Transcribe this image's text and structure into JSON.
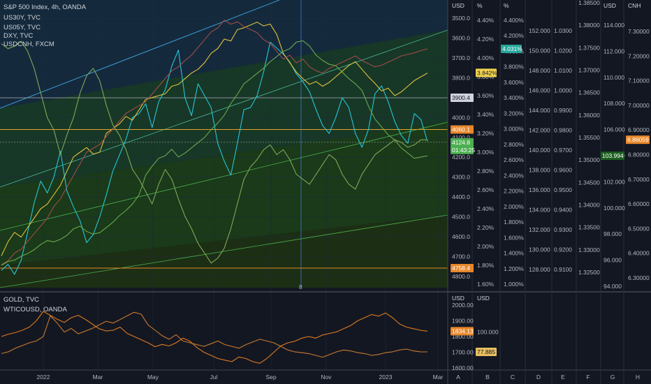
{
  "legend_main": [
    "S&P 500 Index, 4h, OANDA",
    "US30Y, TVC",
    "US05Y, TVC",
    "DXY, TVC",
    "USDCNH, FXCM"
  ],
  "legend_sub": [
    "GOLD, TVC",
    "WTICOUSD, OANDA"
  ],
  "axis_units": [
    "USD",
    "%",
    "%",
    "",
    "",
    "",
    "USD",
    "CNH"
  ],
  "sub_axis_units": [
    "USD",
    "USD"
  ],
  "axis_letters": [
    "A",
    "B",
    "C",
    "D",
    "E",
    "F",
    "G",
    "H"
  ],
  "colors": {
    "background": "#131722",
    "spx": "#26c6da",
    "us30y": "#e0c040",
    "us05y": "#a14a4a",
    "dxy": "#6aa84f",
    "usdcnh": "#7fa85a",
    "gold": "#e07a1f",
    "wti": "#c97a2e",
    "channel": "#3d9bd6"
  },
  "chart_data": {
    "type": "line",
    "x_ticks": [
      "2022",
      "Mar",
      "May",
      "Jul",
      "Sep",
      "Nov",
      "2023",
      "Mar"
    ],
    "time_marker_label": "8",
    "axes": [
      {
        "id": "A",
        "unit": "USD",
        "series": "S&P 500 Index",
        "ticks": [
          "4800.0",
          "4700.0",
          "4600.0",
          "4500.0",
          "4400.0",
          "4300.0",
          "4200.0",
          "4100.0",
          "4000.0",
          "3900.0",
          "3800.0",
          "3700.0",
          "3600.0",
          "3500.0"
        ]
      },
      {
        "id": "B",
        "unit": "%",
        "series": "US30Y",
        "ticks": [
          "4.40%",
          "4.20%",
          "4.00%",
          "3.80%",
          "3.60%",
          "3.40%",
          "3.20%",
          "3.00%",
          "2.80%",
          "2.60%",
          "2.40%",
          "2.20%",
          "2.00%",
          "1.80%",
          "1.60%"
        ]
      },
      {
        "id": "C",
        "unit": "%",
        "series": "US05Y",
        "ticks": [
          "4.400%",
          "4.200%",
          "4.000%",
          "3.800%",
          "3.600%",
          "3.400%",
          "3.200%",
          "3.000%",
          "2.800%",
          "2.600%",
          "2.400%",
          "2.200%",
          "2.000%",
          "1.800%",
          "1.600%",
          "1.400%",
          "1.200%",
          "1.000%"
        ]
      },
      {
        "id": "D",
        "unit": "",
        "series": "DXY",
        "ticks": [
          "152.000",
          "150.000",
          "148.000",
          "146.000",
          "144.000",
          "142.000",
          "140.000",
          "138.000",
          "136.000",
          "134.000",
          "132.000",
          "130.000",
          "128.000"
        ]
      },
      {
        "id": "E",
        "unit": "",
        "series": "",
        "ticks": [
          "1.0300",
          "1.0200",
          "1.0100",
          "1.0000",
          "0.9900",
          "0.9800",
          "0.9700",
          "0.9600",
          "0.9500",
          "0.9400",
          "0.9300",
          "0.9200",
          "0.9100"
        ]
      },
      {
        "id": "F",
        "unit": "",
        "series": "",
        "ticks": [
          "1.38500",
          "1.38000",
          "1.37500",
          "1.37000",
          "1.36500",
          "1.36000",
          "1.35500",
          "1.35000",
          "1.34500",
          "1.34000",
          "1.33500",
          "1.33000",
          "1.32500"
        ]
      },
      {
        "id": "G",
        "unit": "USD",
        "series": "",
        "ticks": [
          "114.000",
          "112.000",
          "110.000",
          "108.000",
          "106.000",
          "104.000",
          "102.000",
          "100.000",
          "98.000",
          "96.000",
          "94.000"
        ]
      },
      {
        "id": "H",
        "unit": "CNH",
        "series": "USDCNH",
        "ticks": [
          "7.30000",
          "7.20000",
          "7.10000",
          "7.00000",
          "6.90000",
          "6.80000",
          "6.70000",
          "6.60000",
          "6.50000",
          "6.40000",
          "6.30000"
        ]
      }
    ],
    "sub_axes": [
      {
        "unit": "USD",
        "series": "GOLD",
        "ticks": [
          "2000.00",
          "1900.00",
          "1800.00",
          "1700.00",
          "1600.00"
        ]
      },
      {
        "unit": "USD",
        "series": "WTICOUSD",
        "ticks": [
          "100.000",
          "77.885"
        ]
      }
    ],
    "price_tags": {
      "main": [
        {
          "text": "4758.4",
          "color": "#e8872a",
          "level": 4758.4
        },
        {
          "text": "4124.8",
          "color": "#4caf50",
          "level": 4124.8
        },
        {
          "text": "01:43:25",
          "color": "#4caf50",
          "level": 4095
        },
        {
          "text": "4060.1",
          "color": "#e8872a",
          "level": 4060.1
        },
        {
          "text": "3900.4",
          "color": "#d1d4dc",
          "level": 3900.4
        }
      ],
      "us30y": {
        "text": "3.842%",
        "color": "#f2d34f",
        "level": 3.842
      },
      "us05y": {
        "text": "4.031%",
        "color": "#26a69a",
        "level": 4.031
      },
      "dxy_g": {
        "text": "103.994",
        "color": "#1b5e20",
        "level": 103.994
      },
      "cnh": {
        "text": "6.86059",
        "color": "#e8872a",
        "level": 6.86059
      },
      "gold": {
        "text": "1834.13",
        "color": "#e8872a",
        "level": 1834.13
      },
      "wti": {
        "text": "77.885",
        "color": "#e8c060",
        "level": 77.885
      }
    },
    "series": [
      {
        "name": "S&P 500 Index",
        "axis": "A",
        "values": [
          4770,
          4740,
          4790,
          4720,
          4580,
          4430,
          4320,
          4380,
          4300,
          4170,
          4370,
          4450,
          4520,
          4630,
          4590,
          4500,
          4390,
          4270,
          4190,
          4110,
          4000,
          3980,
          3930,
          4050,
          3920,
          3860,
          3740,
          3660,
          3900,
          3990,
          3830,
          3890,
          3950,
          4130,
          4220,
          4290,
          4130,
          3960,
          3950,
          3890,
          3770,
          3620,
          3650,
          3680,
          3720,
          3780,
          3820,
          3870,
          3960,
          4040,
          4080,
          4000,
          3900,
          3950,
          4080,
          4150,
          4060,
          3880,
          3840,
          3920,
          4020,
          4090,
          4130,
          3980,
          4010,
          4120
        ]
      },
      {
        "name": "US30Y",
        "axis": "B",
        "values": [
          1.9,
          2.05,
          2.15,
          2.1,
          2.2,
          2.3,
          2.4,
          2.45,
          2.55,
          2.65,
          2.8,
          2.95,
          3.0,
          3.05,
          2.98,
          3.0,
          3.2,
          3.25,
          3.3,
          3.38,
          3.34,
          3.45,
          3.56,
          3.58,
          3.6,
          3.62,
          3.7,
          3.72,
          3.78,
          3.84,
          3.88,
          3.95,
          4.05,
          4.1,
          4.2,
          4.18,
          4.3,
          4.32,
          4.35,
          4.38,
          4.34,
          4.36,
          4.25,
          4.05,
          3.95,
          3.85,
          3.78,
          3.72,
          3.75,
          3.7,
          3.74,
          3.8,
          3.86,
          3.92,
          3.96,
          3.88,
          3.8,
          3.73,
          3.65,
          3.68,
          3.6,
          3.64,
          3.7,
          3.76,
          3.8,
          3.84
        ]
      },
      {
        "name": "US05Y",
        "axis": "C",
        "values": [
          1.25,
          1.3,
          1.4,
          1.45,
          1.55,
          1.65,
          1.75,
          1.85,
          2.0,
          2.1,
          2.25,
          2.4,
          2.55,
          2.7,
          2.75,
          2.8,
          2.9,
          3.0,
          3.1,
          3.2,
          3.25,
          3.3,
          3.35,
          3.45,
          3.55,
          3.65,
          3.75,
          3.8,
          3.88,
          3.95,
          4.05,
          4.15,
          4.25,
          4.3,
          4.4,
          4.35,
          4.38,
          4.32,
          4.28,
          4.24,
          4.15,
          4.1,
          4.0,
          3.9,
          3.95,
          3.85,
          3.9,
          3.8,
          3.75,
          3.72,
          3.78,
          3.82,
          3.86,
          3.9,
          3.94,
          3.88,
          3.84,
          3.8,
          3.82,
          3.86,
          3.9,
          3.94,
          3.96,
          3.98,
          4.01,
          4.03
        ]
      },
      {
        "name": "DXY",
        "axis": "G",
        "values": [
          95.6,
          95.9,
          96.0,
          96.3,
          96.5,
          96.8,
          97.2,
          97.5,
          97.4,
          97.6,
          97.9,
          98.4,
          98.6,
          98.2,
          98.0,
          98.1,
          98.5,
          98.9,
          99.4,
          99.8,
          100.3,
          101.0,
          102.5,
          103.2,
          103.8,
          104.0,
          104.5,
          103.9,
          104.2,
          104.6,
          105.0,
          105.4,
          106.0,
          106.5,
          107.1,
          108.0,
          108.7,
          109.5,
          109.9,
          110.3,
          110.7,
          111.2,
          111.6,
          112.0,
          112.2,
          112.7,
          112.8,
          112.4,
          111.7,
          111.3,
          111.0,
          110.9,
          110.4,
          109.9,
          109.5,
          109.0,
          107.8,
          106.8,
          106.2,
          105.6,
          105.2,
          104.6,
          104.2,
          103.8,
          103.9,
          103.99
        ]
      },
      {
        "name": "USDCNH",
        "axis": "H",
        "values": [
          7.25,
          7.23,
          7.24,
          7.26,
          7.22,
          7.15,
          7.05,
          6.95,
          6.9,
          6.8,
          6.88,
          6.95,
          7.05,
          7.12,
          7.15,
          7.1,
          7.0,
          6.92,
          6.88,
          6.82,
          6.74,
          6.7,
          6.65,
          6.6,
          6.68,
          6.74,
          6.7,
          6.62,
          6.55,
          6.5,
          6.44,
          6.4,
          6.36,
          6.38,
          6.42,
          6.5,
          6.6,
          6.7,
          6.75,
          6.78,
          6.82,
          6.84,
          6.8,
          6.82,
          6.78,
          6.72,
          6.7,
          6.68,
          6.72,
          6.76,
          6.8,
          6.78,
          6.72,
          6.68,
          6.66,
          6.72,
          6.76,
          6.8,
          6.82,
          6.84,
          6.86,
          6.85,
          6.83,
          6.84,
          6.86,
          6.86
        ]
      },
      {
        "name": "GOLD",
        "axis": "sub0",
        "values": [
          1800,
          1815,
          1825,
          1840,
          1860,
          1900,
          1960,
          1935,
          1910,
          1890,
          1920,
          1935,
          1910,
          1880,
          1850,
          1835,
          1840,
          1860,
          1820,
          1800,
          1780,
          1760,
          1735,
          1750,
          1740,
          1760,
          1790,
          1770,
          1730,
          1700,
          1680,
          1660,
          1650,
          1640,
          1670,
          1660,
          1640,
          1630,
          1660,
          1700,
          1740,
          1760,
          1770,
          1790,
          1800,
          1790,
          1810,
          1820,
          1830,
          1850,
          1870,
          1900,
          1920,
          1940,
          1930,
          1950,
          1920,
          1880,
          1860,
          1850,
          1840,
          1834
        ]
      },
      {
        "name": "WTICOUSD",
        "axis": "sub1",
        "values": [
          76,
          78,
          82,
          85,
          88,
          90,
          95,
          118,
          110,
          100,
          104,
          98,
          101,
          104,
          108,
          112,
          110,
          114,
          118,
          122,
          120,
          108,
          102,
          96,
          92,
          97,
          90,
          88,
          86,
          84,
          87,
          90,
          86,
          84,
          82,
          86,
          89,
          92,
          90,
          88,
          84,
          80,
          78,
          77,
          76,
          74,
          72,
          75,
          78,
          80,
          79,
          77,
          76,
          74,
          75,
          77,
          78,
          80,
          81,
          79,
          78,
          77.885
        ]
      }
    ]
  }
}
